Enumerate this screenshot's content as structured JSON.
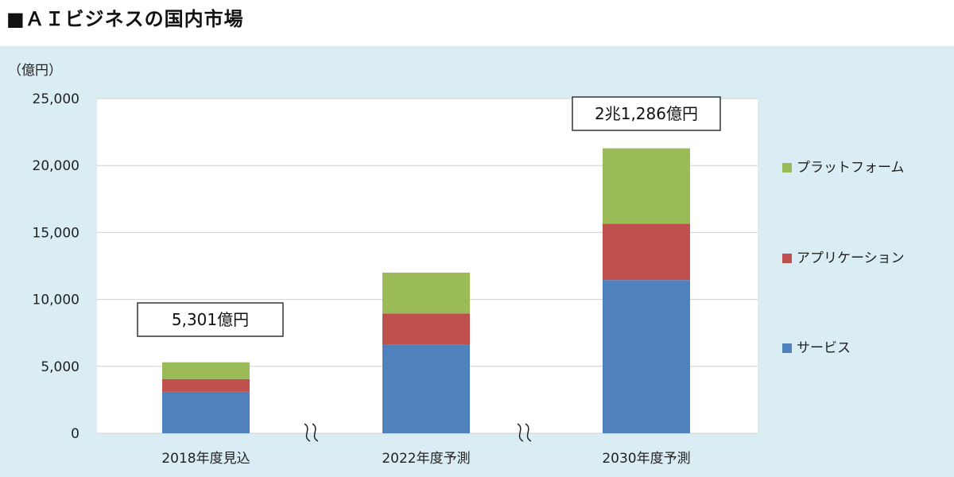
{
  "title": "■ＡＩビジネスの国内市場",
  "chart_data": {
    "type": "bar",
    "stacked": true,
    "unit_label": "（億円）",
    "categories": [
      "2018年度見込",
      "2022年度予測",
      "2030年度予測"
    ],
    "series": [
      {
        "name": "サービス",
        "color": "#4f81bd",
        "values": [
          3100,
          6600,
          11450
        ]
      },
      {
        "name": "アプリケーション",
        "color": "#c0504d",
        "values": [
          950,
          2350,
          4200
        ]
      },
      {
        "name": "プラットフォーム",
        "color": "#9bbb59",
        "values": [
          1251,
          3050,
          5636
        ]
      }
    ],
    "ylim": [
      0,
      25000
    ],
    "yticks": [
      "0",
      "5,000",
      "10,000",
      "15,000",
      "20,000",
      "25,000"
    ],
    "ytick_values": [
      0,
      5000,
      10000,
      15000,
      20000,
      25000
    ],
    "callouts": [
      "5,301億円",
      null,
      "2兆1,286億円"
    ],
    "grid": true,
    "legend_position": "right",
    "axis_breaks": true
  }
}
